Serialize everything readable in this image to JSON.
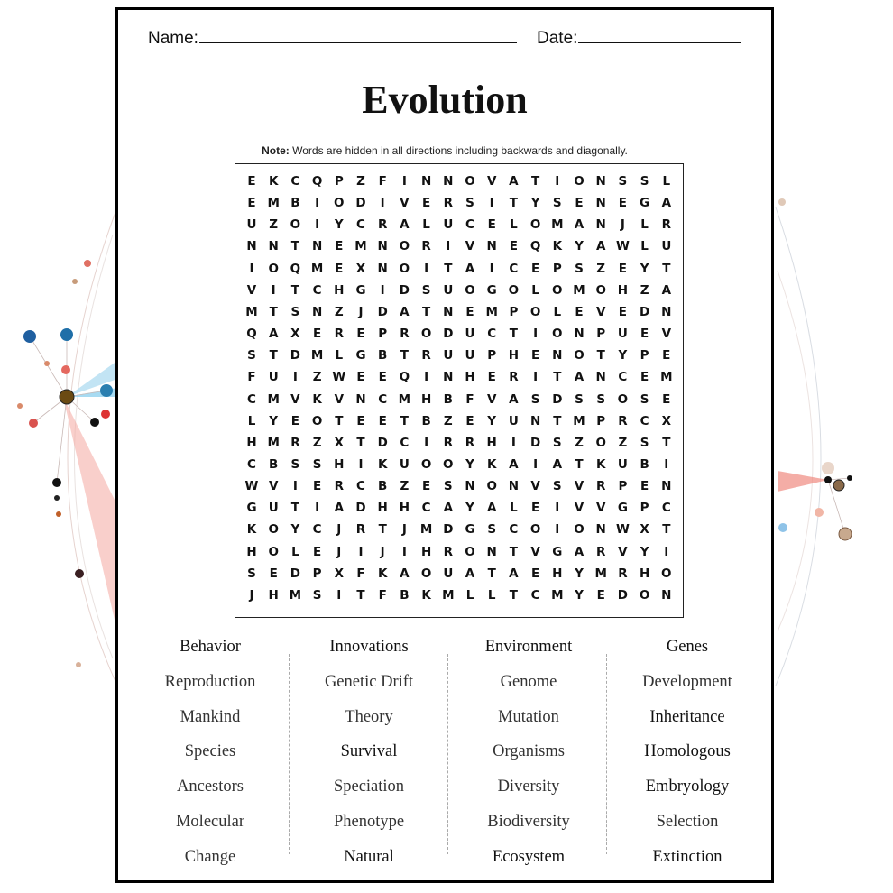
{
  "header": {
    "name_label": "Name:",
    "date_label": "Date:"
  },
  "title": "Evolution",
  "note": {
    "bold": "Note:",
    "text": " Words are hidden in all directions including backwards and diagonally."
  },
  "grid": [
    "EKCQPZFINNOVATIONSSL",
    "EMBIODIVERSITYSENEGA",
    "UZOIYCRALUCELOMANJLR",
    "NNTNEMNORIVNEQKYAWLU",
    "IOQMEXNOITAICEPSZEYT",
    "VITCHGIDSUOGOLOMOHZA",
    "MTSNZJDATNEMPOLEVEDN",
    "QAXEREPRODUCTIONPUEV",
    "STDMLGBTRUUPHENOTYPE",
    "FUIZWEEQINHERITANCEM",
    "CMVKVNCMHBFVASDSSOSE",
    "LYEOTEETBZEYUNTMPRCX",
    "HMRZXTDCIRRHIDSZOZST",
    "CBSSHIKUOOYKAIATKUBI",
    "WVIERCBZESNONVSVRPEN",
    "GUTIADHHCAYALEIVVGPC",
    "KOYCJRTJMDGSCOIONWXT",
    "HOLEJIJIHRONTVGARVYI",
    "SEDPXFKAOUATAEHYMRHO",
    "JHMSITFBKMLLTCMYEDON"
  ],
  "word_columns": [
    [
      "Behavior",
      "Reproduction",
      "Mankind",
      "Species",
      "Ancestors",
      "Molecular",
      "Change"
    ],
    [
      "Innovations",
      "Genetic Drift",
      "Theory",
      "Survival",
      "Speciation",
      "Phenotype",
      "Natural"
    ],
    [
      "Environment",
      "Genome",
      "Mutation",
      "Organisms",
      "Diversity",
      "Biodiversity",
      "Ecosystem"
    ],
    [
      "Genes",
      "Development",
      "Inheritance",
      "Homologous",
      "Embryology",
      "Selection",
      "Extinction"
    ]
  ]
}
